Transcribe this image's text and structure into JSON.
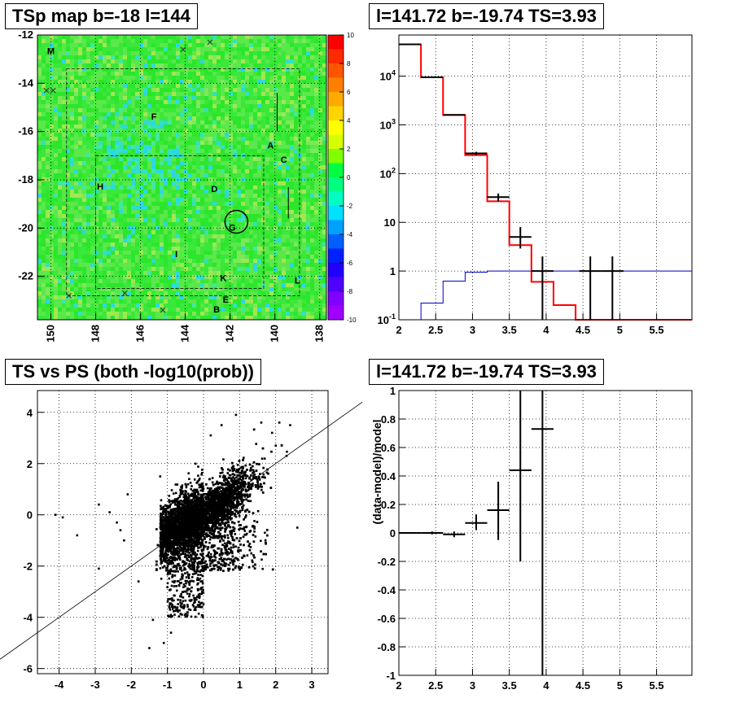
{
  "panels": {
    "tl": {
      "title": "TSp map b=-18 l=144"
    },
    "tr": {
      "title": "l=141.72 b=-19.74 TS=3.93"
    },
    "bl": {
      "title": "TS vs PS (both -log10(prob))"
    },
    "br": {
      "title": "l=141.72 b=-19.74 TS=3.93"
    }
  },
  "chart_data": [
    {
      "type": "heatmap",
      "title": "TSp map b=-18 l=144",
      "x_ticks": [
        "150",
        "148",
        "146",
        "144",
        "142",
        "140",
        "138"
      ],
      "y_ticks": [
        "-12",
        "-14",
        "-16",
        "-18",
        "-20",
        "-22"
      ],
      "xlim": [
        150.6,
        137.7
      ],
      "ylim": [
        -23.8,
        -12.0
      ],
      "colorbar": {
        "min": -10,
        "max": 10,
        "ticks": [
          "10",
          "8",
          "6",
          "4",
          "2",
          "0",
          "-2",
          "-4",
          "-6",
          "-8",
          "-10"
        ]
      },
      "source_labels": [
        {
          "text": "M",
          "l": 150.0,
          "b": -12.8
        },
        {
          "text": "F",
          "l": 145.4,
          "b": -15.5
        },
        {
          "text": "A",
          "l": 140.2,
          "b": -16.7
        },
        {
          "text": "C",
          "l": 139.6,
          "b": -17.3
        },
        {
          "text": "H",
          "l": 147.8,
          "b": -18.4
        },
        {
          "text": "D",
          "l": 142.7,
          "b": -18.5
        },
        {
          "text": "G",
          "l": 141.9,
          "b": -20.1
        },
        {
          "text": "I",
          "l": 144.4,
          "b": -21.2
        },
        {
          "text": "K",
          "l": 142.3,
          "b": -22.2
        },
        {
          "text": "L",
          "l": 139.0,
          "b": -22.3
        },
        {
          "text": "E",
          "l": 142.2,
          "b": -23.1
        },
        {
          "text": "B",
          "l": 142.6,
          "b": -23.5
        }
      ],
      "circle": {
        "l": 141.72,
        "b": -19.74
      }
    },
    {
      "type": "line",
      "title": "l=141.72 b=-19.74 TS=3.93",
      "y_scale": "log",
      "xlim": [
        2.0,
        5.98
      ],
      "ylim": [
        0.1,
        70000
      ],
      "x_ticks": [
        "2",
        "2.5",
        "3",
        "3.5",
        "4",
        "4.5",
        "5",
        "5.5"
      ],
      "y_ticks": [
        "10^4",
        "10^3",
        "10^2",
        "10",
        "1",
        "10^-1"
      ],
      "model_step_red": {
        "edges": [
          2.0,
          2.3,
          2.6,
          2.9,
          3.2,
          3.5,
          3.8,
          4.1,
          4.4,
          4.7,
          5.98
        ],
        "values": [
          45000,
          9500,
          1600,
          240,
          27,
          3.4,
          0.6,
          0.2,
          0.07,
          0.1
        ]
      },
      "background_step_blue": {
        "edges": [
          2.0,
          2.3,
          2.6,
          2.9,
          3.2,
          3.5,
          3.8,
          4.1,
          4.4,
          4.7,
          5.98
        ],
        "values": [
          0.1,
          0.22,
          0.62,
          0.95,
          1.0,
          1.0,
          1.0,
          1.0,
          1.0,
          1.0
        ]
      },
      "data_points": [
        {
          "x": 2.15,
          "y": 45000,
          "xerr": 0.15
        },
        {
          "x": 2.45,
          "y": 9500,
          "xerr": 0.15
        },
        {
          "x": 2.75,
          "y": 1600,
          "xerr": 0.15
        },
        {
          "x": 3.05,
          "y": 260,
          "xerr": 0.15,
          "ylo": 240,
          "yhi": 280
        },
        {
          "x": 3.35,
          "y": 33,
          "xerr": 0.15,
          "ylo": 27,
          "yhi": 39
        },
        {
          "x": 3.65,
          "y": 5,
          "xerr": 0.15,
          "ylo": 2.9,
          "yhi": 8
        },
        {
          "x": 3.95,
          "y": 1.0,
          "xerr": 0.15,
          "ylo": 0.1,
          "yhi": 2.0
        },
        {
          "x": 4.6,
          "y": 1.0,
          "xerr": 0.15,
          "ylo": 0.1,
          "yhi": 2.0
        },
        {
          "x": 4.9,
          "y": 1.0,
          "xerr": 0.15,
          "ylo": 0.1,
          "yhi": 2.0
        }
      ]
    },
    {
      "type": "scatter",
      "title": "TS vs PS (both -log10(prob))",
      "xlim": [
        -4.6,
        3.45
      ],
      "ylim": [
        -6.2,
        4.85
      ],
      "x_ticks": [
        "-4",
        "-3",
        "-2",
        "-1",
        "0",
        "1",
        "2",
        "3"
      ],
      "y_ticks": [
        "4",
        "2",
        "0",
        "-2",
        "-4",
        "-6"
      ],
      "reference_line": "y = x",
      "main_cloud": {
        "center": [
          0.2,
          0.3
        ],
        "count": 6000
      },
      "points": [
        [
          -4.1,
          0.0
        ],
        [
          -3.9,
          -0.1
        ],
        [
          -3.5,
          -0.8
        ],
        [
          -2.9,
          -2.1
        ],
        [
          -2.9,
          0.4
        ],
        [
          -2.6,
          0.1
        ],
        [
          -2.1,
          0.8
        ],
        [
          -2.4,
          -0.3
        ],
        [
          -2.2,
          -1.0
        ],
        [
          -1.8,
          -2.6
        ],
        [
          -2.3,
          -0.6
        ],
        [
          -1.5,
          -5.2
        ],
        [
          -1.1,
          -5.0
        ],
        [
          -0.9,
          -4.6
        ],
        [
          -1.2,
          1.5
        ],
        [
          -1.4,
          -4.1
        ],
        [
          -0.8,
          -3.9
        ],
        [
          -0.5,
          1.2
        ],
        [
          0.5,
          3.5
        ],
        [
          0.9,
          3.9
        ],
        [
          1.6,
          3.6
        ],
        [
          2.1,
          3.6
        ],
        [
          2.4,
          3.5
        ],
        [
          2.3,
          2.3
        ],
        [
          2.0,
          2.7
        ],
        [
          2.6,
          -0.5
        ],
        [
          1.7,
          -0.7
        ],
        [
          0.8,
          -1.5
        ],
        [
          0.2,
          3.1
        ],
        [
          1.9,
          3.2
        ]
      ]
    },
    {
      "type": "scatter",
      "title": "l=141.72 b=-19.74 TS=3.93",
      "xlim": [
        2.0,
        5.98
      ],
      "ylim": [
        -1.0,
        1.0
      ],
      "ylabel": "(data-model)/model",
      "x_ticks": [
        "2",
        "2.5",
        "3",
        "3.5",
        "4",
        "4.5",
        "5",
        "5.5"
      ],
      "y_ticks": [
        "1",
        "0.8",
        "0.6",
        "0.4",
        "0.2",
        "0",
        "-0.2",
        "-0.4",
        "-0.6",
        "-0.8",
        "-1"
      ],
      "points": [
        {
          "x": 2.15,
          "y": 0.0,
          "xerr": 0.15,
          "ylo": -0.005,
          "yhi": 0.005
        },
        {
          "x": 2.45,
          "y": 0.0,
          "xerr": 0.15,
          "ylo": -0.01,
          "yhi": 0.01
        },
        {
          "x": 2.75,
          "y": -0.01,
          "xerr": 0.15,
          "ylo": -0.03,
          "yhi": 0.01
        },
        {
          "x": 3.05,
          "y": 0.07,
          "xerr": 0.15,
          "ylo": 0.02,
          "yhi": 0.13
        },
        {
          "x": 3.35,
          "y": 0.16,
          "xerr": 0.15,
          "ylo": -0.05,
          "yhi": 0.36
        },
        {
          "x": 3.65,
          "y": 0.44,
          "xerr": 0.15,
          "ylo": -0.2,
          "yhi": 1.0
        },
        {
          "x": 3.95,
          "y": 0.73,
          "xerr": 0.15,
          "ylo": -1.0,
          "yhi": 1.0
        }
      ]
    }
  ]
}
